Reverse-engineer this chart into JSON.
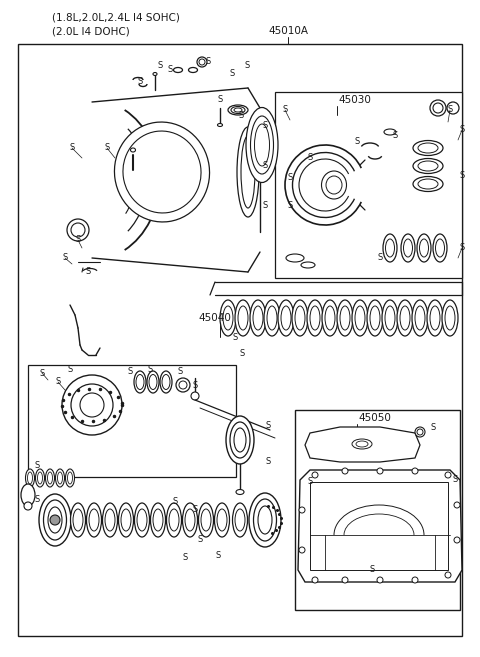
{
  "title_line1": "(1.8L,2.0L,2.4L I4 SOHC)",
  "title_line2": "(2.0L I4 DOHC)",
  "label_45010A": "45010A",
  "label_45030": "45030",
  "label_45040": "45040",
  "label_45050": "45050",
  "bg_color": "#ffffff",
  "line_color": "#1a1a1a",
  "s_label": "S",
  "fig_width": 4.8,
  "fig_height": 6.57,
  "dpi": 100
}
